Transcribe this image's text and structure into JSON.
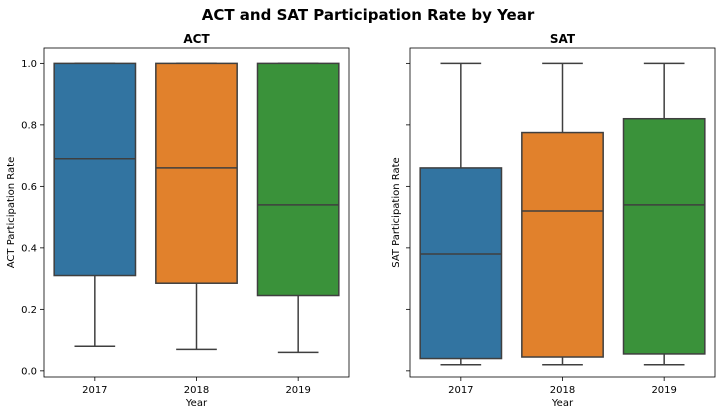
{
  "chart_data": {
    "title": "ACT and SAT Participation Rate by Year",
    "type": "boxplot",
    "categories": [
      "2017",
      "2018",
      "2019"
    ],
    "colors": [
      "#3274a1",
      "#e1812c",
      "#3a923a"
    ],
    "shared_y": true,
    "ylim": [
      -0.02,
      1.05
    ],
    "yticks": [
      "0.0",
      "0.2",
      "0.4",
      "0.6",
      "0.8",
      "1.0"
    ],
    "yticks_values": [
      0.0,
      0.2,
      0.4,
      0.6,
      0.8,
      1.0
    ],
    "grid": false,
    "panels": [
      {
        "title": "ACT",
        "xlabel": "Year",
        "ylabel": "ACT Participation Rate",
        "boxes": [
          {
            "category": "2017",
            "min": 0.08,
            "q1": 0.31,
            "median": 0.69,
            "q3": 1.0,
            "max": 1.0
          },
          {
            "category": "2018",
            "min": 0.07,
            "q1": 0.285,
            "median": 0.66,
            "q3": 1.0,
            "max": 1.0
          },
          {
            "category": "2019",
            "min": 0.06,
            "q1": 0.245,
            "median": 0.54,
            "q3": 1.0,
            "max": 1.0
          }
        ]
      },
      {
        "title": "SAT",
        "xlabel": "Year",
        "ylabel": "SAT Participation Rate",
        "boxes": [
          {
            "category": "2017",
            "min": 0.02,
            "q1": 0.04,
            "median": 0.38,
            "q3": 0.66,
            "max": 1.0
          },
          {
            "category": "2018",
            "min": 0.02,
            "q1": 0.045,
            "median": 0.52,
            "q3": 0.775,
            "max": 1.0
          },
          {
            "category": "2019",
            "min": 0.02,
            "q1": 0.055,
            "median": 0.54,
            "q3": 0.82,
            "max": 1.0
          }
        ]
      }
    ]
  }
}
